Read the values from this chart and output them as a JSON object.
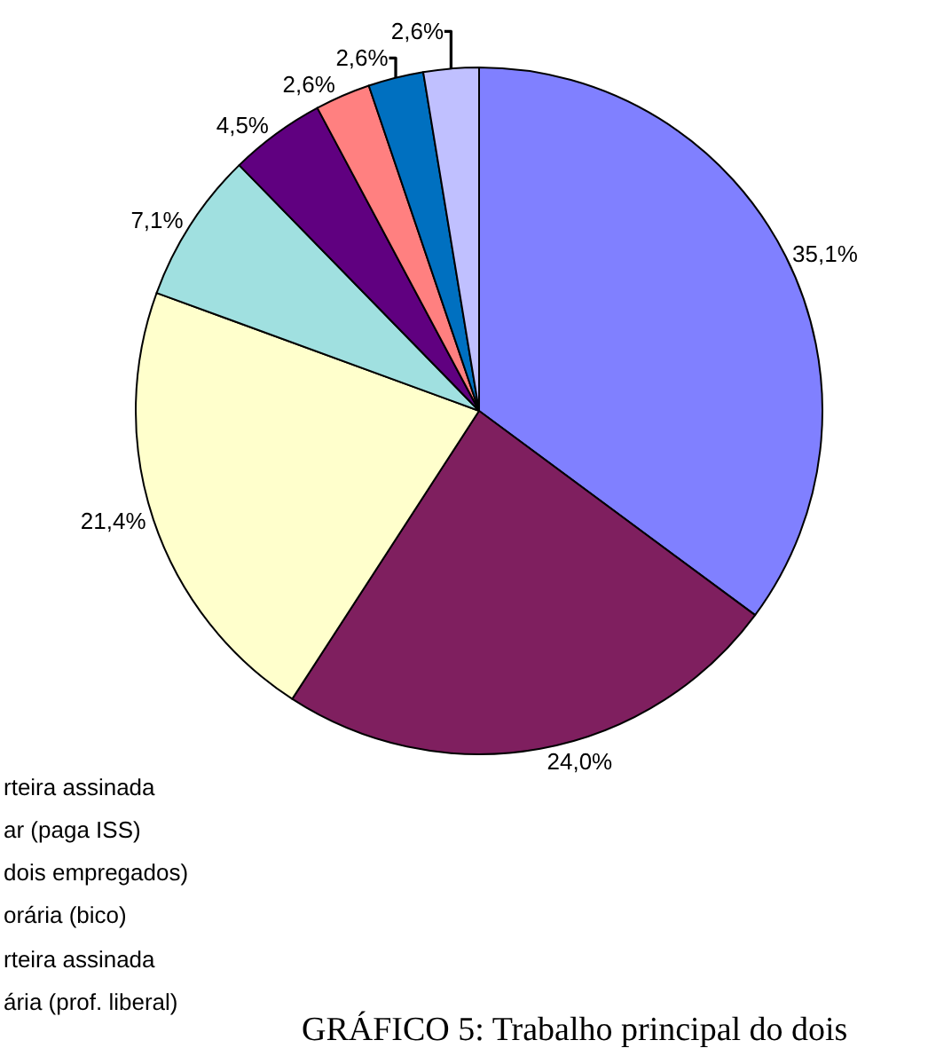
{
  "chart_data": {
    "type": "pie",
    "categories": [
      null,
      null,
      null,
      null,
      null,
      null,
      null,
      null
    ],
    "values": [
      35.1,
      24.0,
      21.4,
      7.1,
      4.5,
      2.6,
      2.6,
      2.6
    ],
    "colors": [
      "#8080ff",
      "#7f1f5f",
      "#ffffcc",
      "#a0e0e0",
      "#600080",
      "#ff8080",
      "#0070c0",
      "#c0c0ff"
    ],
    "value_labels": [
      "35,1%",
      "24,0%",
      "21,4%",
      "7,1%",
      "4,5%",
      "2,6%",
      "2,6%",
      "2,6%"
    ],
    "annotations": [
      "rteira assinada",
      "ar (paga ISS)",
      "dois empregados)",
      "orária (bico)",
      "rteira assinada",
      "ária (prof. liberal)",
      "GRÁFICO 5: Trabalho principal do dois"
    ],
    "legend": false
  }
}
